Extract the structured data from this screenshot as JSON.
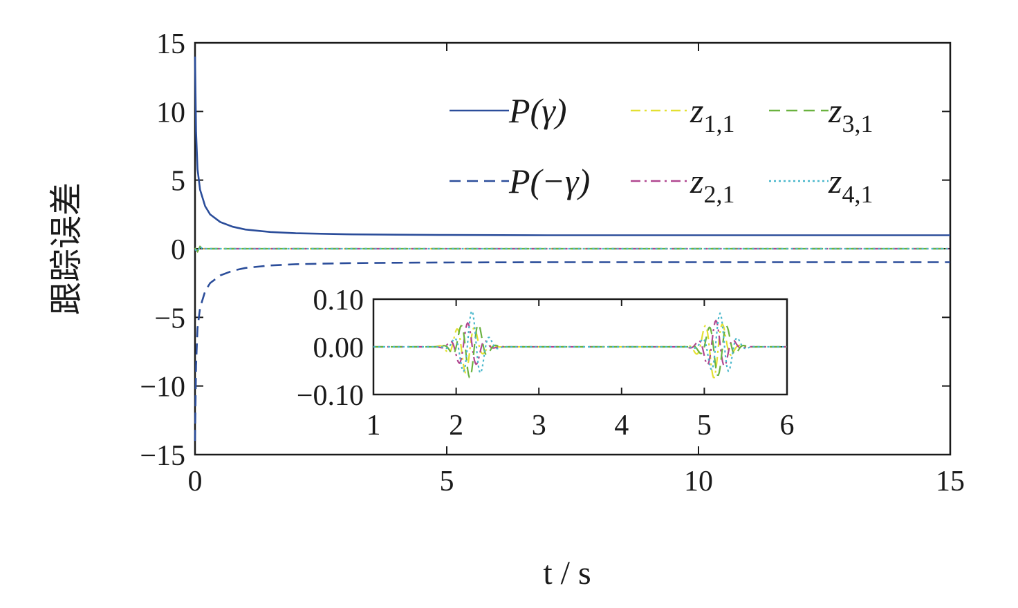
{
  "chart_data": {
    "type": "line",
    "xlabel": "t / s",
    "ylabel": "跟踪误差",
    "xlim": [
      0,
      15
    ],
    "ylim": [
      -15,
      15
    ],
    "xticks": [
      "0",
      "5",
      "10",
      "15"
    ],
    "yticks": [
      "15",
      "10",
      "5",
      "0",
      "−5",
      "−10",
      "−15"
    ],
    "grid": false,
    "legend_position": "top-right",
    "series": [
      {
        "name": "P(γ)",
        "color": "#2b4d9a",
        "dash": "solid",
        "x": [
          0,
          0.02,
          0.05,
          0.1,
          0.2,
          0.3,
          0.5,
          0.75,
          1,
          1.5,
          2,
          3,
          4,
          5,
          7,
          10,
          12,
          15
        ],
        "y": [
          14,
          8.5,
          5.8,
          4.3,
          3.1,
          2.5,
          1.95,
          1.6,
          1.4,
          1.22,
          1.13,
          1.05,
          1.02,
          1.0,
          0.98,
          0.98,
          0.98,
          0.98
        ]
      },
      {
        "name": "P(−γ)",
        "color": "#2b4d9a",
        "dash": "dashed",
        "x": [
          0,
          0.02,
          0.05,
          0.1,
          0.2,
          0.3,
          0.5,
          0.75,
          1,
          1.5,
          2,
          3,
          4,
          5,
          7,
          10,
          12,
          15
        ],
        "y": [
          -14,
          -8.5,
          -5.8,
          -4.3,
          -3.1,
          -2.5,
          -1.95,
          -1.6,
          -1.4,
          -1.22,
          -1.13,
          -1.05,
          -1.02,
          -1.0,
          -0.98,
          -0.98,
          -0.98,
          -0.98
        ]
      },
      {
        "name": "z1,1",
        "label_main": "z",
        "label_sub": "1,1",
        "color": "#e3e032",
        "dash": "dashdot"
      },
      {
        "name": "z2,1",
        "label_main": "z",
        "label_sub": "2,1",
        "color": "#b0468f",
        "dash": "dashdot"
      },
      {
        "name": "z3,1",
        "label_main": "z",
        "label_sub": "3,1",
        "color": "#6ab23f",
        "dash": "dashed"
      },
      {
        "name": "z4,1",
        "label_main": "z",
        "label_sub": "4,1",
        "color": "#4ab8cc",
        "dash": "dotted"
      }
    ],
    "legend": [
      {
        "text": "P(γ)",
        "series": 0
      },
      {
        "text": "P(−γ)",
        "series": 1
      },
      {
        "text": "z",
        "sub": "1,1",
        "series": 2
      },
      {
        "text": "z",
        "sub": "2,1",
        "series": 3
      },
      {
        "text": "z",
        "sub": "3,1",
        "series": 4
      },
      {
        "text": "z",
        "sub": "4,1",
        "series": 5
      }
    ],
    "inset": {
      "xlim": [
        1,
        6
      ],
      "ylim": [
        -0.1,
        0.1
      ],
      "xticks": [
        "1",
        "2",
        "3",
        "4",
        "5",
        "6"
      ],
      "yticks": [
        "0.10",
        "0.00",
        "−0.10"
      ],
      "disturbances": [
        {
          "t0": 2.0,
          "amplitudes": [
            0.055,
            0.05,
            0.065,
            0.075
          ]
        },
        {
          "t0": 5.0,
          "amplitudes": [
            0.065,
            0.055,
            0.06,
            0.07
          ]
        }
      ]
    }
  }
}
